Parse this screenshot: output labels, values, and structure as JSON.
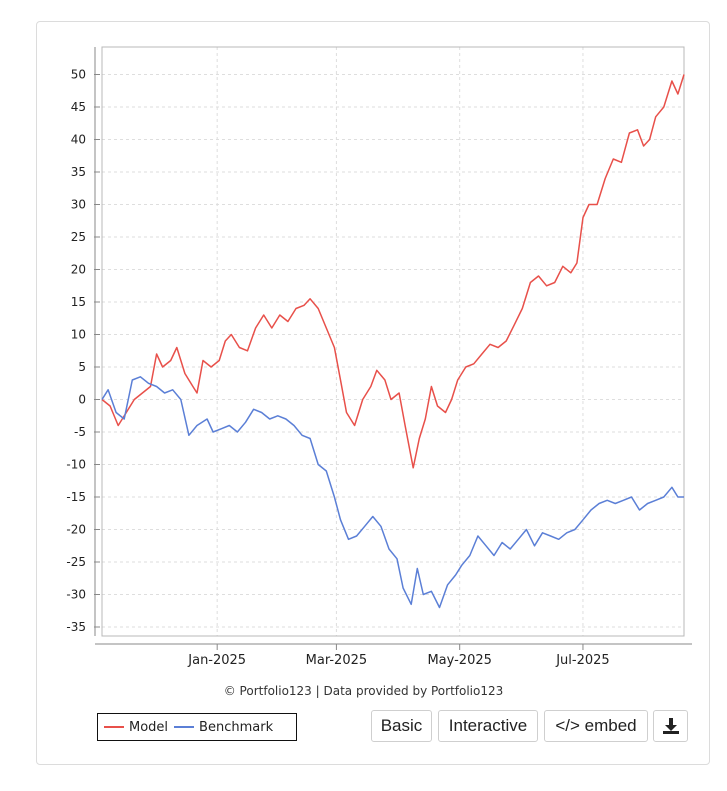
{
  "chart_data": {
    "type": "line",
    "title": "",
    "xlabel": "",
    "ylabel": "",
    "ylim": [
      -35,
      50
    ],
    "yticks": [
      50,
      45,
      40,
      35,
      30,
      25,
      20,
      15,
      10,
      5,
      0,
      -5,
      -10,
      -15,
      -20,
      -25,
      -30,
      -35
    ],
    "x_range": [
      "2024-11-05",
      "2025-08-20"
    ],
    "xticks": [
      {
        "date": "2025-01-01",
        "label": "Jan-2025"
      },
      {
        "date": "2025-03-01",
        "label": "Mar-2025"
      },
      {
        "date": "2025-05-01",
        "label": "May-2025"
      },
      {
        "date": "2025-07-01",
        "label": "Jul-2025"
      }
    ],
    "grid": true,
    "legend_position": "bottom-left",
    "series": [
      {
        "name": "Model",
        "color": "#e8504a",
        "points": [
          [
            "2024-11-05",
            0.0
          ],
          [
            "2024-11-09",
            -1.0
          ],
          [
            "2024-11-13",
            -4.0
          ],
          [
            "2024-11-17",
            -2.0
          ],
          [
            "2024-11-21",
            0.0
          ],
          [
            "2024-11-25",
            1.0
          ],
          [
            "2024-11-29",
            2.0
          ],
          [
            "2024-12-02",
            7.0
          ],
          [
            "2024-12-05",
            5.0
          ],
          [
            "2024-12-09",
            6.0
          ],
          [
            "2024-12-12",
            8.0
          ],
          [
            "2024-12-16",
            4.0
          ],
          [
            "2024-12-20",
            2.0
          ],
          [
            "2024-12-22",
            1.0
          ],
          [
            "2024-12-25",
            6.0
          ],
          [
            "2024-12-29",
            5.0
          ],
          [
            "2025-01-02",
            6.0
          ],
          [
            "2025-01-05",
            9.0
          ],
          [
            "2025-01-08",
            10.0
          ],
          [
            "2025-01-12",
            8.0
          ],
          [
            "2025-01-16",
            7.5
          ],
          [
            "2025-01-20",
            11.0
          ],
          [
            "2025-01-24",
            13.0
          ],
          [
            "2025-01-28",
            11.0
          ],
          [
            "2025-02-01",
            13.0
          ],
          [
            "2025-02-05",
            12.0
          ],
          [
            "2025-02-09",
            14.0
          ],
          [
            "2025-02-13",
            14.5
          ],
          [
            "2025-02-16",
            15.5
          ],
          [
            "2025-02-20",
            14.0
          ],
          [
            "2025-02-24",
            11.0
          ],
          [
            "2025-02-28",
            8.0
          ],
          [
            "2025-03-03",
            3.0
          ],
          [
            "2025-03-06",
            -2.0
          ],
          [
            "2025-03-10",
            -4.0
          ],
          [
            "2025-03-14",
            0.0
          ],
          [
            "2025-03-18",
            2.0
          ],
          [
            "2025-03-21",
            4.5
          ],
          [
            "2025-03-25",
            3.0
          ],
          [
            "2025-03-28",
            0.0
          ],
          [
            "2025-04-01",
            1.0
          ],
          [
            "2025-04-04",
            -4.0
          ],
          [
            "2025-04-08",
            -10.5
          ],
          [
            "2025-04-11",
            -6.0
          ],
          [
            "2025-04-14",
            -3.0
          ],
          [
            "2025-04-17",
            2.0
          ],
          [
            "2025-04-20",
            -1.0
          ],
          [
            "2025-04-24",
            -2.0
          ],
          [
            "2025-04-27",
            0.0
          ],
          [
            "2025-04-30",
            3.0
          ],
          [
            "2025-05-04",
            5.0
          ],
          [
            "2025-05-08",
            5.5
          ],
          [
            "2025-05-12",
            7.0
          ],
          [
            "2025-05-16",
            8.5
          ],
          [
            "2025-05-20",
            8.0
          ],
          [
            "2025-05-24",
            9.0
          ],
          [
            "2025-05-28",
            11.5
          ],
          [
            "2025-06-01",
            14.0
          ],
          [
            "2025-06-05",
            18.0
          ],
          [
            "2025-06-09",
            19.0
          ],
          [
            "2025-06-13",
            17.5
          ],
          [
            "2025-06-17",
            18.0
          ],
          [
            "2025-06-21",
            20.5
          ],
          [
            "2025-06-25",
            19.5
          ],
          [
            "2025-06-28",
            21.0
          ],
          [
            "2025-07-01",
            28.0
          ],
          [
            "2025-07-04",
            30.0
          ],
          [
            "2025-07-08",
            30.0
          ],
          [
            "2025-07-12",
            34.0
          ],
          [
            "2025-07-16",
            37.0
          ],
          [
            "2025-07-20",
            36.5
          ],
          [
            "2025-07-24",
            41.0
          ],
          [
            "2025-07-28",
            41.5
          ],
          [
            "2025-07-31",
            39.0
          ],
          [
            "2025-08-03",
            40.0
          ],
          [
            "2025-08-06",
            43.5
          ],
          [
            "2025-08-10",
            45.0
          ],
          [
            "2025-08-14",
            49.0
          ],
          [
            "2025-08-17",
            47.0
          ],
          [
            "2025-08-20",
            50.0
          ]
        ]
      },
      {
        "name": "Benchmark",
        "color": "#5b7fd6",
        "points": [
          [
            "2024-11-05",
            0.0
          ],
          [
            "2024-11-08",
            1.5
          ],
          [
            "2024-11-12",
            -2.0
          ],
          [
            "2024-11-16",
            -3.0
          ],
          [
            "2024-11-20",
            3.0
          ],
          [
            "2024-11-24",
            3.5
          ],
          [
            "2024-11-28",
            2.5
          ],
          [
            "2024-12-02",
            2.0
          ],
          [
            "2024-12-06",
            1.0
          ],
          [
            "2024-12-10",
            1.5
          ],
          [
            "2024-12-14",
            0.0
          ],
          [
            "2024-12-18",
            -5.5
          ],
          [
            "2024-12-22",
            -4.0
          ],
          [
            "2024-12-27",
            -3.0
          ],
          [
            "2024-12-30",
            -5.0
          ],
          [
            "2025-01-03",
            -4.5
          ],
          [
            "2025-01-07",
            -4.0
          ],
          [
            "2025-01-11",
            -5.0
          ],
          [
            "2025-01-15",
            -3.5
          ],
          [
            "2025-01-19",
            -1.5
          ],
          [
            "2025-01-23",
            -2.0
          ],
          [
            "2025-01-27",
            -3.0
          ],
          [
            "2025-01-31",
            -2.5
          ],
          [
            "2025-02-04",
            -3.0
          ],
          [
            "2025-02-08",
            -4.0
          ],
          [
            "2025-02-12",
            -5.5
          ],
          [
            "2025-02-16",
            -6.0
          ],
          [
            "2025-02-20",
            -10.0
          ],
          [
            "2025-02-24",
            -11.0
          ],
          [
            "2025-02-28",
            -15.0
          ],
          [
            "2025-03-03",
            -18.5
          ],
          [
            "2025-03-07",
            -21.5
          ],
          [
            "2025-03-11",
            -21.0
          ],
          [
            "2025-03-15",
            -19.5
          ],
          [
            "2025-03-19",
            -18.0
          ],
          [
            "2025-03-23",
            -19.5
          ],
          [
            "2025-03-27",
            -23.0
          ],
          [
            "2025-03-31",
            -24.5
          ],
          [
            "2025-04-03",
            -29.0
          ],
          [
            "2025-04-07",
            -31.5
          ],
          [
            "2025-04-10",
            -26.0
          ],
          [
            "2025-04-13",
            -30.0
          ],
          [
            "2025-04-17",
            -29.5
          ],
          [
            "2025-04-21",
            -32.0
          ],
          [
            "2025-04-25",
            -28.5
          ],
          [
            "2025-04-29",
            -27.0
          ],
          [
            "2025-05-02",
            -25.5
          ],
          [
            "2025-05-06",
            -24.0
          ],
          [
            "2025-05-10",
            -21.0
          ],
          [
            "2025-05-14",
            -22.5
          ],
          [
            "2025-05-18",
            -24.0
          ],
          [
            "2025-05-22",
            -22.0
          ],
          [
            "2025-05-26",
            -23.0
          ],
          [
            "2025-05-30",
            -21.5
          ],
          [
            "2025-06-03",
            -20.0
          ],
          [
            "2025-06-07",
            -22.5
          ],
          [
            "2025-06-11",
            -20.5
          ],
          [
            "2025-06-15",
            -21.0
          ],
          [
            "2025-06-19",
            -21.5
          ],
          [
            "2025-06-23",
            -20.5
          ],
          [
            "2025-06-27",
            -20.0
          ],
          [
            "2025-07-01",
            -18.5
          ],
          [
            "2025-07-05",
            -17.0
          ],
          [
            "2025-07-09",
            -16.0
          ],
          [
            "2025-07-13",
            -15.5
          ],
          [
            "2025-07-17",
            -16.0
          ],
          [
            "2025-07-21",
            -15.5
          ],
          [
            "2025-07-25",
            -15.0
          ],
          [
            "2025-07-29",
            -17.0
          ],
          [
            "2025-08-02",
            -16.0
          ],
          [
            "2025-08-06",
            -15.5
          ],
          [
            "2025-08-10",
            -15.0
          ],
          [
            "2025-08-14",
            -13.5
          ],
          [
            "2025-08-17",
            -15.0
          ],
          [
            "2025-08-20",
            -15.0
          ]
        ]
      }
    ]
  },
  "credit": "© Portfolio123 | Data provided by Portfolio123",
  "legend": {
    "items": [
      "Model",
      "Benchmark"
    ]
  },
  "buttons": {
    "basic": "Basic",
    "interactive": "Interactive",
    "embed": "</> embed",
    "download_icon": "download-icon"
  }
}
